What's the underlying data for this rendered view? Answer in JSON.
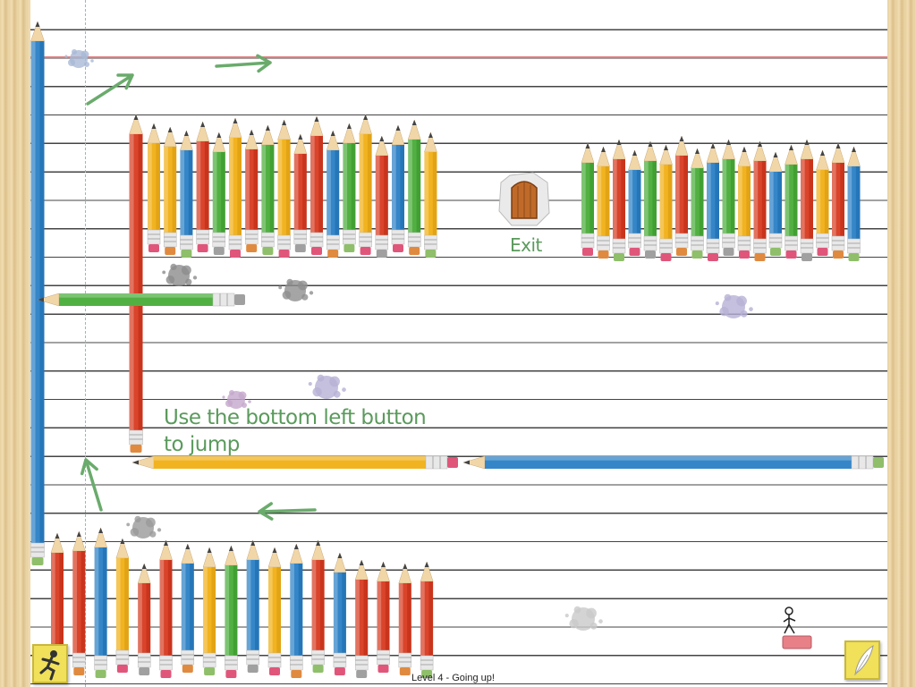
{
  "game": {
    "hint_line1": "Use the bottom left button",
    "hint_line2": "to jump",
    "exit_label": "Exit",
    "status": "Level 4 - Going up!"
  },
  "buttons": {
    "left_icon": "running-man-icon",
    "right_icon": "quill-icon"
  },
  "colors": {
    "red_pencil": "#d9442b",
    "yellow_pencil": "#f2b321",
    "blue_pencil": "#3586c8",
    "green_pencil": "#52b043",
    "hint_green": "#5a9a5c",
    "button_yellow": "#f0e05a"
  }
}
